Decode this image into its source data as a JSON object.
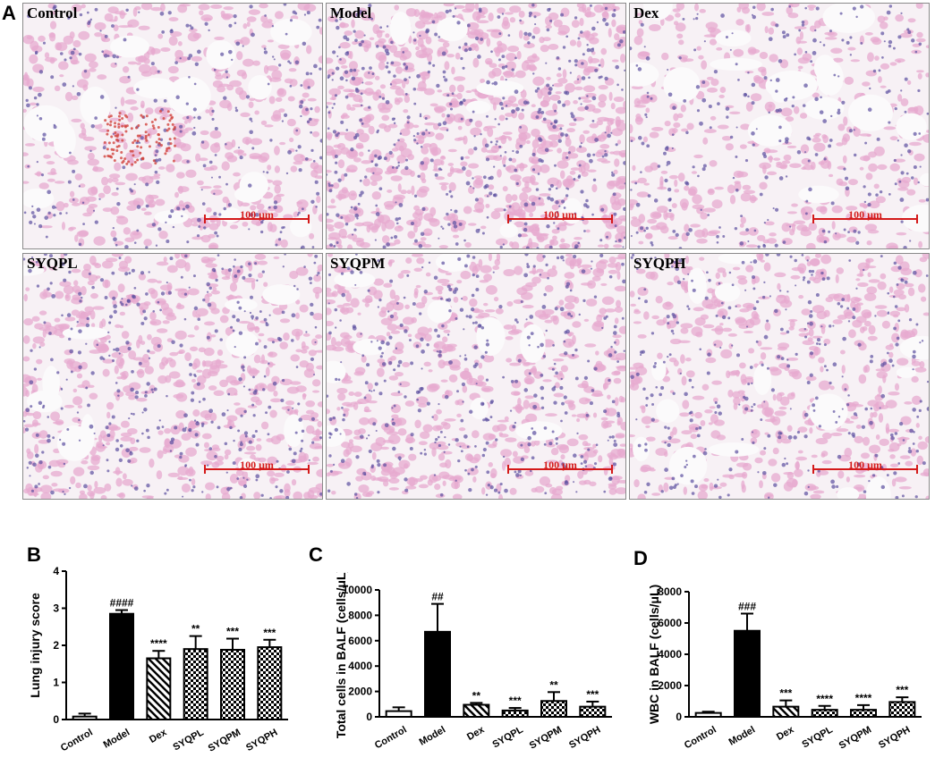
{
  "panels": {
    "A": "A",
    "B": "B",
    "C": "C",
    "D": "D"
  },
  "micrographs": [
    {
      "label": "Control",
      "scale": "100 μm"
    },
    {
      "label": "Model",
      "scale": "100 μm"
    },
    {
      "label": "Dex",
      "scale": "100 μm"
    },
    {
      "label": "SYQPL",
      "scale": "100 μm"
    },
    {
      "label": "SYQPM",
      "scale": "100 μm"
    },
    {
      "label": "SYQPH",
      "scale": "100 μm"
    }
  ],
  "colors": {
    "tissue_pink": "#e7a9cf",
    "nuclei_blue": "#5b4fa0",
    "rbc_red": "#d2453f",
    "scale_red": "#d41a1a",
    "bar_black": "#000000"
  },
  "chart_data": [
    {
      "id": "B",
      "type": "bar",
      "ylabel": "Lung injury score",
      "ylim": [
        0,
        4
      ],
      "yticks": [
        0,
        1,
        2,
        3,
        4
      ],
      "categories": [
        "Control",
        "Model",
        "Dex",
        "SYQPL",
        "SYQPM",
        "SYQPH"
      ],
      "values": [
        0.08,
        2.85,
        1.65,
        1.9,
        1.88,
        1.95
      ],
      "errors": [
        0.08,
        0.1,
        0.2,
        0.35,
        0.3,
        0.2
      ],
      "patterns": [
        "white",
        "black",
        "diag",
        "check",
        "check",
        "check"
      ],
      "annotations": [
        "",
        "####",
        "****",
        "**",
        "***",
        "***"
      ]
    },
    {
      "id": "C",
      "type": "bar",
      "ylabel": "Total cells in BALF (cells/μL)",
      "ylim": [
        0,
        10000
      ],
      "yticks": [
        0,
        2000,
        4000,
        6000,
        8000,
        10000
      ],
      "categories": [
        "Control",
        "Model",
        "Dex",
        "SYQPL",
        "SYQPM",
        "SYQPH"
      ],
      "values": [
        450,
        6700,
        950,
        500,
        1250,
        800
      ],
      "errors": [
        300,
        2200,
        150,
        200,
        700,
        400
      ],
      "patterns": [
        "white",
        "black",
        "diag",
        "check",
        "check",
        "check"
      ],
      "annotations": [
        "",
        "##",
        "**",
        "***",
        "**",
        "***"
      ]
    },
    {
      "id": "D",
      "type": "bar",
      "ylabel": "WBC in BALF (cells/μL)",
      "ylim": [
        0,
        8000
      ],
      "yticks": [
        0,
        2000,
        4000,
        6000,
        8000
      ],
      "categories": [
        "Control",
        "Model",
        "Dex",
        "SYQPL",
        "SYQPM",
        "SYQPH"
      ],
      "values": [
        250,
        5500,
        650,
        450,
        450,
        950
      ],
      "errors": [
        80,
        1100,
        400,
        250,
        300,
        300
      ],
      "patterns": [
        "white",
        "black",
        "diag",
        "check",
        "check",
        "check"
      ],
      "annotations": [
        "",
        "###",
        "***",
        "****",
        "****",
        "***"
      ]
    }
  ]
}
